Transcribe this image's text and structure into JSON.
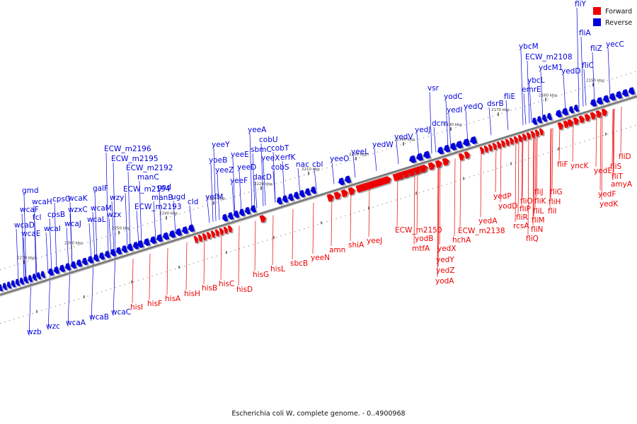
{
  "caption": "Escherichia coli W, complete genome. - 0..4900968",
  "legend": {
    "forward": {
      "label": "Forward",
      "color": "#ee0000"
    },
    "reverse": {
      "label": "Reverse",
      "color": "#0000dd"
    }
  },
  "colors": {
    "forward": "#ee0000",
    "reverse": "#0000dd",
    "backbone": "#777777"
  },
  "scale": {
    "unit": "kbp",
    "tick_labels": [
      "2150 kbp",
      "2160 kbp",
      "2170 kbp",
      "2180 kbp",
      "2190 kbp",
      "2200 kbp",
      "2210 kbp",
      "2220 kbp",
      "2230 kbp",
      "2240 kbp",
      "2250 kbp",
      "2260 kbp",
      "2270 kbp"
    ]
  },
  "reverse_labels": [
    "fliY",
    "fliA",
    "fliZ",
    "yecC",
    "ybcM",
    "ECW_m2108",
    "ydcM1",
    "yedD",
    "fliC",
    "ybcL",
    "emrE",
    "fliE",
    "dsrB",
    "yodC",
    "yedQ",
    "vsr",
    "yedI",
    "dcm",
    "yedJ",
    "yedV",
    "yedW",
    "yeeL",
    "yeeO",
    "cbl",
    "nac",
    "erfK",
    "cobT",
    "cobS",
    "cobU",
    "yeeA",
    "sbmC",
    "yeeX",
    "dacD",
    "yeeE",
    "yeeD",
    "yeeF",
    "yeeY",
    "yoeB",
    "yeeZ",
    "yefM",
    "cld",
    "ugd",
    "gnd",
    "manB",
    "manC",
    "ECW_m2192",
    "ECW_m2195",
    "ECW_m2196",
    "ECW_m2194",
    "galF",
    "wzy",
    "ECW_m2193",
    "wzx",
    "wcaM",
    "wcaL",
    "wzxC",
    "wcaK",
    "wcaJ",
    "cpsG",
    "cpsB",
    "wcaI",
    "fcl",
    "wcaH",
    "gmd",
    "wcaF",
    "wcaD",
    "wcaE",
    "wcaC",
    "wcaB",
    "wcaA",
    "wzc",
    "wzb"
  ],
  "forward_labels": [
    "fliD",
    "fliS",
    "fliT",
    "amyA",
    "yedE",
    "yedF",
    "yedK",
    "yncK",
    "fliF",
    "fliG",
    "fliH",
    "fliI",
    "fliJ",
    "fliK",
    "fliL",
    "fliM",
    "fliN",
    "fliO",
    "fliP",
    "fliQ",
    "fliR",
    "rcsA",
    "yedP",
    "yodD",
    "yedA",
    "ECW_m2138",
    "hchA",
    "ECW_m2150",
    "yodB",
    "mtfA",
    "yedX",
    "yedY",
    "yedZ",
    "yodA",
    "yeeJ",
    "shiA",
    "amn",
    "yeeN",
    "sbcB",
    "hisL",
    "hisG",
    "hisD",
    "hisC",
    "hisB",
    "hisH",
    "hisA",
    "hisF",
    "hisI"
  ]
}
